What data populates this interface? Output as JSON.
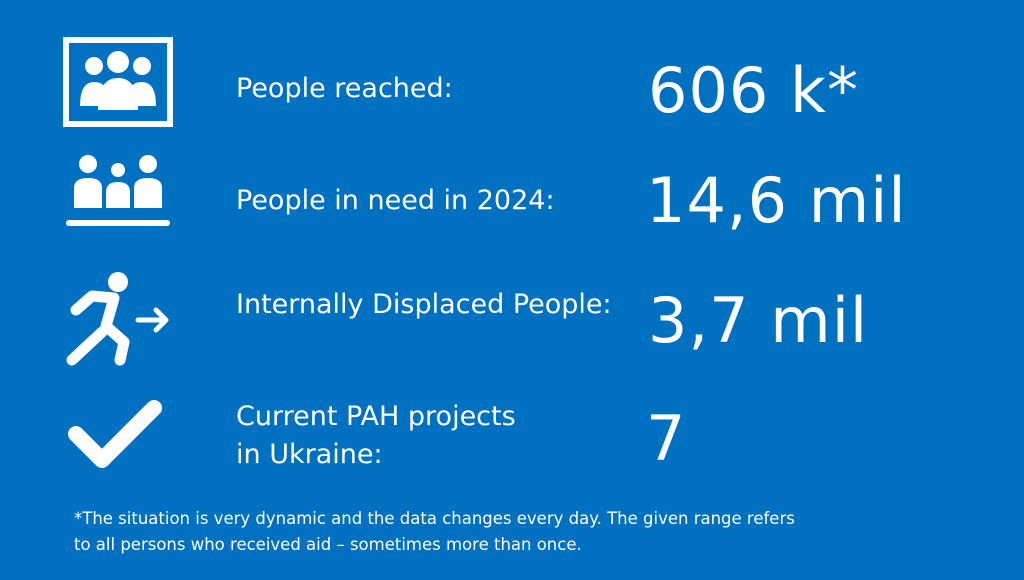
{
  "stats": [
    {
      "icon": "group-frame-icon",
      "label_lines": [
        "People reached:"
      ],
      "value": "606 k*"
    },
    {
      "icon": "family-icon",
      "label_lines": [
        "People in need in 2024:"
      ],
      "value": "14,6 mil"
    },
    {
      "icon": "running-person-arrow-icon",
      "label_lines": [
        "Internally Displaced People:"
      ],
      "value": "3,7 mil"
    },
    {
      "icon": "checkmark-icon",
      "label_lines": [
        "Current PAH projects",
        "in Ukraine:"
      ],
      "value": "7"
    }
  ],
  "footnote": {
    "lines": [
      "*The situation is very dynamic and the data changes every day. The given range refers",
      "to all persons who received aid – sometimes more than once."
    ]
  },
  "colors": {
    "background": "#0070c0",
    "foreground": "#ffffff"
  }
}
